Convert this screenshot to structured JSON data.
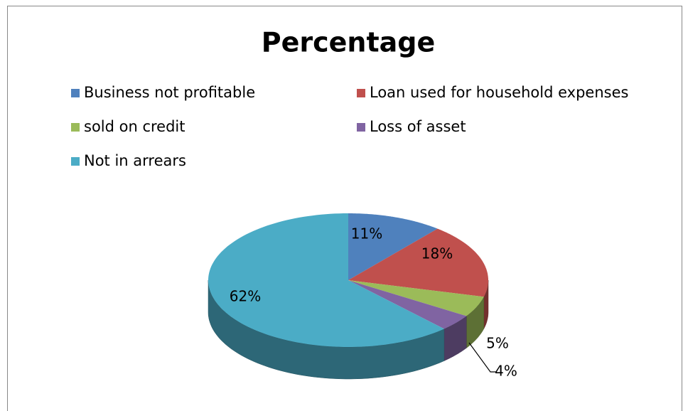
{
  "chart_data": {
    "type": "pie",
    "title": "Percentage",
    "categories": [
      "Business not profitable",
      "Loan used for household expenses",
      "sold on credit",
      "Loss of asset",
      "Not in arrears"
    ],
    "values": [
      11,
      18,
      5,
      4,
      62
    ],
    "value_labels": [
      "11%",
      "18%",
      "5%",
      "4%",
      "62%"
    ],
    "colors": [
      "#4f81bd",
      "#c0504d",
      "#9bbb59",
      "#8064a2",
      "#4bacc6"
    ],
    "legend": "top"
  }
}
